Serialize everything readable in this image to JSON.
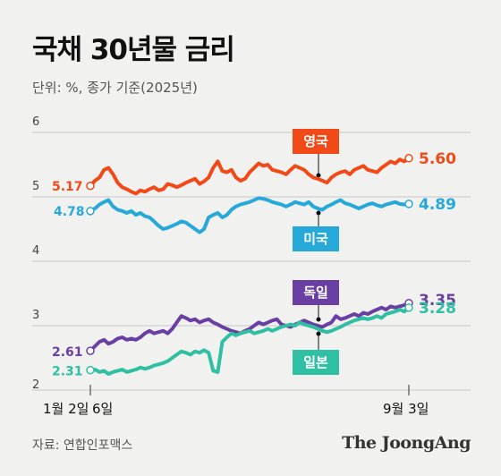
{
  "title": "국채 30년물 금리",
  "subtitle": "단위: %, 종가 기준(2025년)",
  "source": "자료: 연합인포맥스",
  "brand": "The JoongAng",
  "chart_data": {
    "type": "line",
    "x_range": [
      "1월 2일",
      "9월 3일"
    ],
    "x_tick_labels": [
      "1월 2일",
      "6일",
      "9월 3일"
    ],
    "y_tick_labels": [
      "2",
      "3",
      "4",
      "5",
      "6"
    ],
    "ylim": [
      2,
      6
    ],
    "grid": true,
    "series": [
      {
        "name": "영국",
        "color": "#f14a18",
        "start_label": "5.17",
        "end_label": "5.60",
        "values": [
          5.17,
          5.25,
          5.3,
          5.42,
          5.45,
          5.35,
          5.22,
          5.15,
          5.12,
          5.08,
          5.05,
          5.1,
          5.08,
          5.12,
          5.15,
          5.1,
          5.12,
          5.2,
          5.18,
          5.15,
          5.18,
          5.22,
          5.25,
          5.28,
          5.2,
          5.24,
          5.3,
          5.45,
          5.55,
          5.4,
          5.38,
          5.42,
          5.3,
          5.25,
          5.28,
          5.38,
          5.45,
          5.52,
          5.48,
          5.5,
          5.42,
          5.4,
          5.38,
          5.35,
          5.42,
          5.48,
          5.45,
          5.42,
          5.35,
          5.3,
          5.28,
          5.25,
          5.22,
          5.3,
          5.35,
          5.38,
          5.4,
          5.35,
          5.42,
          5.45,
          5.48,
          5.42,
          5.4,
          5.38,
          5.45,
          5.5,
          5.55,
          5.52,
          5.58,
          5.55,
          5.6
        ]
      },
      {
        "name": "미국",
        "color": "#26a9d8",
        "start_label": "4.78",
        "end_label": "4.89",
        "values": [
          4.78,
          4.82,
          4.88,
          4.92,
          4.95,
          4.85,
          4.8,
          4.78,
          4.75,
          4.78,
          4.72,
          4.75,
          4.7,
          4.68,
          4.62,
          4.55,
          4.5,
          4.52,
          4.55,
          4.58,
          4.62,
          4.6,
          4.55,
          4.5,
          4.45,
          4.5,
          4.68,
          4.72,
          4.75,
          4.68,
          4.72,
          4.8,
          4.85,
          4.88,
          4.9,
          4.92,
          4.95,
          4.98,
          4.97,
          4.95,
          4.92,
          4.9,
          4.88,
          4.85,
          4.88,
          4.92,
          4.9,
          4.88,
          4.92,
          4.85,
          4.82,
          4.8,
          4.85,
          4.88,
          4.92,
          4.95,
          4.9,
          4.88,
          4.85,
          4.82,
          4.85,
          4.88,
          4.9,
          4.87,
          4.85,
          4.88,
          4.9,
          4.92,
          4.89,
          4.88,
          4.89
        ]
      },
      {
        "name": "독일",
        "color": "#6a3fa3",
        "start_label": "2.61",
        "end_label": "3.35",
        "values": [
          2.61,
          2.68,
          2.75,
          2.78,
          2.72,
          2.75,
          2.8,
          2.82,
          2.78,
          2.8,
          2.78,
          2.82,
          2.88,
          2.92,
          2.88,
          2.9,
          2.92,
          2.88,
          2.95,
          3.05,
          3.15,
          3.12,
          3.08,
          3.1,
          3.05,
          3.08,
          3.1,
          3.05,
          3.02,
          2.98,
          2.95,
          2.92,
          2.9,
          2.88,
          2.92,
          2.95,
          3.0,
          3.05,
          3.02,
          3.05,
          3.08,
          3.1,
          3.02,
          3.0,
          2.98,
          3.02,
          3.05,
          3.08,
          3.05,
          3.02,
          3.0,
          2.98,
          3.02,
          3.05,
          3.15,
          3.1,
          3.12,
          3.15,
          3.18,
          3.15,
          3.2,
          3.18,
          3.22,
          3.25,
          3.28,
          3.25,
          3.3,
          3.28,
          3.3,
          3.32,
          3.35
        ]
      },
      {
        "name": "일본",
        "color": "#2fbfa3",
        "start_label": "2.31",
        "end_label": "3.28",
        "values": [
          2.31,
          2.32,
          2.28,
          2.3,
          2.25,
          2.28,
          2.3,
          2.32,
          2.28,
          2.3,
          2.32,
          2.35,
          2.33,
          2.35,
          2.38,
          2.4,
          2.42,
          2.45,
          2.5,
          2.55,
          2.6,
          2.58,
          2.55,
          2.6,
          2.58,
          2.62,
          2.58,
          2.3,
          2.28,
          2.75,
          2.82,
          2.88,
          2.85,
          2.88,
          2.9,
          2.92,
          2.88,
          2.9,
          2.92,
          2.95,
          2.92,
          2.95,
          2.98,
          3.0,
          3.02,
          3.0,
          3.05,
          3.02,
          3.0,
          2.98,
          2.95,
          2.92,
          2.9,
          2.92,
          2.95,
          2.98,
          3.02,
          3.05,
          3.08,
          3.1,
          3.12,
          3.1,
          3.12,
          3.15,
          3.12,
          3.18,
          3.2,
          3.22,
          3.25,
          3.22,
          3.28
        ]
      }
    ]
  }
}
